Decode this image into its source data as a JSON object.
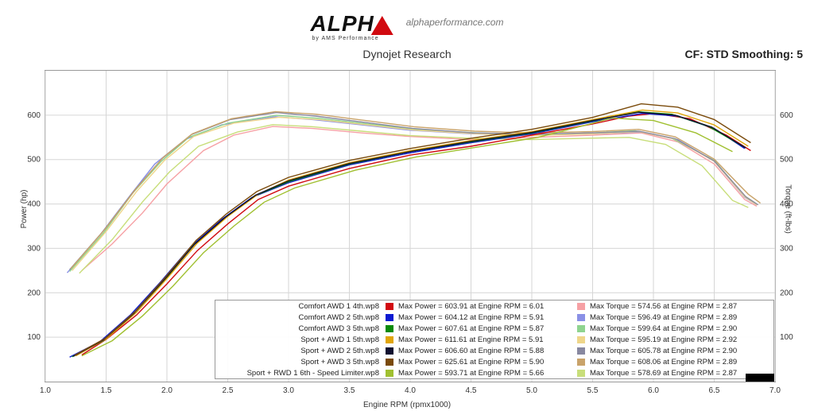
{
  "brand": {
    "logo_text": "ALPH",
    "logo_sub": "by AMS Performance",
    "domain": "alphaperformance.com"
  },
  "chart": {
    "title": "Dynojet Research",
    "cf_text": "CF: STD Smoothing: 5",
    "x_label": "Engine RPM (rpmx1000)",
    "y_label_left": "Power (hp)",
    "y_label_right": "Torque (ft-lbs)",
    "background_color": "#ffffff",
    "grid_color": "#d6d6d6",
    "axis_color": "#999999",
    "x": {
      "min": 1.0,
      "max": 7.0,
      "tick_step": 0.5
    },
    "y_left": {
      "min": 0,
      "max": 700,
      "tick_step": 100
    },
    "y_right": {
      "min": 0,
      "max": 700,
      "tick_step": 100
    },
    "line_width": 1.4
  },
  "runs": [
    {
      "name": "Comfort AWD 1 4th.wp8",
      "power_color": "#d10a10",
      "torque_color": "#f6a0a4",
      "max_power": 603.91,
      "max_power_rpm": 6.01,
      "max_torque": 574.56,
      "max_torque_rpm": 2.87,
      "power": [
        [
          1.3,
          60
        ],
        [
          1.5,
          95
        ],
        [
          1.75,
          150
        ],
        [
          2.0,
          220
        ],
        [
          2.25,
          295
        ],
        [
          2.5,
          355
        ],
        [
          2.75,
          410
        ],
        [
          3.0,
          440
        ],
        [
          3.5,
          480
        ],
        [
          4.0,
          510
        ],
        [
          4.5,
          530
        ],
        [
          5.0,
          555
        ],
        [
          5.5,
          580
        ],
        [
          5.8,
          598
        ],
        [
          6.01,
          603.91
        ],
        [
          6.3,
          592
        ],
        [
          6.6,
          555
        ],
        [
          6.8,
          520
        ]
      ],
      "torque": [
        [
          1.3,
          250
        ],
        [
          1.55,
          310
        ],
        [
          1.8,
          380
        ],
        [
          2.0,
          445
        ],
        [
          2.3,
          520
        ],
        [
          2.55,
          555
        ],
        [
          2.87,
          574.56
        ],
        [
          3.2,
          570
        ],
        [
          3.6,
          560
        ],
        [
          4.0,
          552
        ],
        [
          4.5,
          545
        ],
        [
          5.0,
          550
        ],
        [
          5.5,
          555
        ],
        [
          5.9,
          560
        ],
        [
          6.2,
          540
        ],
        [
          6.5,
          490
        ],
        [
          6.75,
          410
        ],
        [
          6.85,
          395
        ]
      ]
    },
    {
      "name": "Comfort AWD 2 5th.wp8",
      "power_color": "#0b1ad1",
      "torque_color": "#8a90e6",
      "max_power": 604.12,
      "max_power_rpm": 5.91,
      "max_torque": 596.49,
      "max_torque_rpm": 2.89,
      "power": [
        [
          1.2,
          55
        ],
        [
          1.45,
          90
        ],
        [
          1.7,
          150
        ],
        [
          1.95,
          225
        ],
        [
          2.2,
          305
        ],
        [
          2.45,
          365
        ],
        [
          2.7,
          415
        ],
        [
          3.0,
          448
        ],
        [
          3.5,
          488
        ],
        [
          4.0,
          515
        ],
        [
          4.5,
          538
        ],
        [
          5.0,
          558
        ],
        [
          5.5,
          585
        ],
        [
          5.91,
          604.12
        ],
        [
          6.2,
          598
        ],
        [
          6.5,
          570
        ],
        [
          6.75,
          525
        ]
      ],
      "torque": [
        [
          1.18,
          245
        ],
        [
          1.45,
          330
        ],
        [
          1.7,
          420
        ],
        [
          1.9,
          490
        ],
        [
          2.15,
          545
        ],
        [
          2.45,
          578
        ],
        [
          2.89,
          596.49
        ],
        [
          3.2,
          590
        ],
        [
          3.6,
          578
        ],
        [
          4.0,
          566
        ],
        [
          4.5,
          558
        ],
        [
          5.0,
          555
        ],
        [
          5.5,
          558
        ],
        [
          5.9,
          562
        ],
        [
          6.2,
          545
        ],
        [
          6.5,
          496
        ],
        [
          6.75,
          415
        ],
        [
          6.85,
          398
        ]
      ]
    },
    {
      "name": "Comfort AWD 3 5th.wp8",
      "power_color": "#0a8a0a",
      "torque_color": "#8fd48f",
      "max_power": 607.61,
      "max_power_rpm": 5.87,
      "max_torque": 599.64,
      "max_torque_rpm": 2.9,
      "power": [
        [
          1.22,
          56
        ],
        [
          1.48,
          92
        ],
        [
          1.72,
          152
        ],
        [
          1.98,
          228
        ],
        [
          2.22,
          308
        ],
        [
          2.48,
          368
        ],
        [
          2.72,
          418
        ],
        [
          3.0,
          450
        ],
        [
          3.5,
          490
        ],
        [
          4.0,
          518
        ],
        [
          4.5,
          540
        ],
        [
          5.0,
          560
        ],
        [
          5.5,
          587
        ],
        [
          5.87,
          607.61
        ],
        [
          6.15,
          602
        ],
        [
          6.45,
          575
        ],
        [
          6.75,
          528
        ]
      ],
      "torque": [
        [
          1.2,
          248
        ],
        [
          1.48,
          335
        ],
        [
          1.72,
          425
        ],
        [
          1.95,
          495
        ],
        [
          2.18,
          550
        ],
        [
          2.5,
          582
        ],
        [
          2.9,
          599.64
        ],
        [
          3.25,
          593
        ],
        [
          3.65,
          580
        ],
        [
          4.05,
          568
        ],
        [
          4.55,
          560
        ],
        [
          5.0,
          556
        ],
        [
          5.5,
          560
        ],
        [
          5.85,
          565
        ],
        [
          6.15,
          548
        ],
        [
          6.5,
          498
        ],
        [
          6.75,
          418
        ],
        [
          6.85,
          400
        ]
      ]
    },
    {
      "name": "Sport + AWD 1 5th.wp8",
      "power_color": "#e0a50a",
      "torque_color": "#efd68a",
      "max_power": 611.61,
      "max_power_rpm": 5.91,
      "max_torque": 595.19,
      "max_torque_rpm": 2.92,
      "power": [
        [
          1.25,
          58
        ],
        [
          1.5,
          96
        ],
        [
          1.75,
          156
        ],
        [
          2.0,
          232
        ],
        [
          2.25,
          312
        ],
        [
          2.5,
          372
        ],
        [
          2.75,
          422
        ],
        [
          3.0,
          454
        ],
        [
          3.5,
          493
        ],
        [
          4.0,
          520
        ],
        [
          4.5,
          543
        ],
        [
          5.0,
          563
        ],
        [
          5.5,
          590
        ],
        [
          5.91,
          611.61
        ],
        [
          6.2,
          605
        ],
        [
          6.5,
          578
        ],
        [
          6.78,
          530
        ]
      ],
      "torque": [
        [
          1.22,
          250
        ],
        [
          1.5,
          338
        ],
        [
          1.75,
          428
        ],
        [
          1.98,
          498
        ],
        [
          2.22,
          552
        ],
        [
          2.55,
          582
        ],
        [
          2.92,
          595.19
        ],
        [
          3.25,
          590
        ],
        [
          3.65,
          578
        ],
        [
          4.05,
          566
        ],
        [
          4.55,
          558
        ],
        [
          5.0,
          554
        ],
        [
          5.5,
          558
        ],
        [
          5.88,
          563
        ],
        [
          6.18,
          546
        ],
        [
          6.5,
          496
        ],
        [
          6.75,
          416
        ],
        [
          6.85,
          398
        ]
      ]
    },
    {
      "name": "Sport + AWD 2 5th.wp8",
      "power_color": "#101030",
      "torque_color": "#8888a0",
      "max_power": 606.6,
      "max_power_rpm": 5.88,
      "max_torque": 605.78,
      "max_torque_rpm": 2.9,
      "power": [
        [
          1.23,
          57
        ],
        [
          1.48,
          94
        ],
        [
          1.73,
          154
        ],
        [
          1.98,
          230
        ],
        [
          2.23,
          310
        ],
        [
          2.48,
          370
        ],
        [
          2.73,
          420
        ],
        [
          3.0,
          452
        ],
        [
          3.5,
          491
        ],
        [
          4.0,
          518
        ],
        [
          4.5,
          541
        ],
        [
          5.0,
          561
        ],
        [
          5.5,
          588
        ],
        [
          5.88,
          606.6
        ],
        [
          6.18,
          600
        ],
        [
          6.48,
          573
        ],
        [
          6.76,
          526
        ]
      ],
      "torque": [
        [
          1.2,
          252
        ],
        [
          1.48,
          340
        ],
        [
          1.73,
          430
        ],
        [
          1.96,
          502
        ],
        [
          2.2,
          556
        ],
        [
          2.52,
          590
        ],
        [
          2.9,
          605.78
        ],
        [
          3.22,
          598
        ],
        [
          3.62,
          584
        ],
        [
          4.02,
          570
        ],
        [
          4.52,
          560
        ],
        [
          5.0,
          557
        ],
        [
          5.5,
          560
        ],
        [
          5.88,
          564
        ],
        [
          6.18,
          547
        ],
        [
          6.5,
          497
        ],
        [
          6.76,
          416
        ],
        [
          6.86,
          398
        ]
      ]
    },
    {
      "name": "Sport + AWD 3 5th.wp8",
      "power_color": "#7a4a0a",
      "torque_color": "#c9a36a",
      "max_power": 625.61,
      "max_power_rpm": 5.9,
      "max_torque": 608.06,
      "max_torque_rpm": 2.89,
      "power": [
        [
          1.24,
          59
        ],
        [
          1.49,
          97
        ],
        [
          1.74,
          158
        ],
        [
          1.99,
          236
        ],
        [
          2.24,
          318
        ],
        [
          2.49,
          378
        ],
        [
          2.74,
          428
        ],
        [
          3.0,
          460
        ],
        [
          3.5,
          498
        ],
        [
          4.0,
          525
        ],
        [
          4.5,
          548
        ],
        [
          5.0,
          568
        ],
        [
          5.5,
          595
        ],
        [
          5.9,
          625.61
        ],
        [
          6.2,
          618
        ],
        [
          6.5,
          590
        ],
        [
          6.8,
          538
        ]
      ],
      "torque": [
        [
          1.21,
          254
        ],
        [
          1.49,
          343
        ],
        [
          1.74,
          432
        ],
        [
          1.97,
          505
        ],
        [
          2.21,
          558
        ],
        [
          2.53,
          592
        ],
        [
          2.89,
          608.06
        ],
        [
          3.23,
          602
        ],
        [
          3.63,
          588
        ],
        [
          4.03,
          574
        ],
        [
          4.53,
          564
        ],
        [
          5.0,
          560
        ],
        [
          5.5,
          563
        ],
        [
          5.88,
          568
        ],
        [
          6.18,
          551
        ],
        [
          6.5,
          501
        ],
        [
          6.78,
          422
        ],
        [
          6.88,
          402
        ]
      ]
    },
    {
      "name": "Sport + RWD 1 6th - Speed Limiter.wp8",
      "power_color": "#a0c030",
      "torque_color": "#c8de7a",
      "max_power": 593.71,
      "max_power_rpm": 5.66,
      "max_torque": 578.69,
      "max_torque_rpm": 2.87,
      "power": [
        [
          1.3,
          58
        ],
        [
          1.55,
          92
        ],
        [
          1.8,
          148
        ],
        [
          2.05,
          215
        ],
        [
          2.3,
          290
        ],
        [
          2.55,
          350
        ],
        [
          2.8,
          404
        ],
        [
          3.05,
          436
        ],
        [
          3.55,
          476
        ],
        [
          4.05,
          506
        ],
        [
          4.55,
          528
        ],
        [
          5.05,
          550
        ],
        [
          5.45,
          578
        ],
        [
          5.66,
          593.71
        ],
        [
          6.0,
          588
        ],
        [
          6.35,
          560
        ],
        [
          6.65,
          518
        ]
      ],
      "torque": [
        [
          1.28,
          244
        ],
        [
          1.55,
          320
        ],
        [
          1.8,
          405
        ],
        [
          2.02,
          472
        ],
        [
          2.26,
          530
        ],
        [
          2.58,
          562
        ],
        [
          2.87,
          578.69
        ],
        [
          3.2,
          574
        ],
        [
          3.6,
          564
        ],
        [
          4.0,
          554
        ],
        [
          4.5,
          548
        ],
        [
          5.0,
          545
        ],
        [
          5.45,
          548
        ],
        [
          5.8,
          550
        ],
        [
          6.1,
          534
        ],
        [
          6.4,
          486
        ],
        [
          6.65,
          408
        ],
        [
          6.78,
          392
        ]
      ]
    }
  ],
  "labels": {
    "max_power_prefix": "Max Power = ",
    "max_torque_prefix": "Max Torque = ",
    "at_rpm": " at Engine RPM = "
  }
}
